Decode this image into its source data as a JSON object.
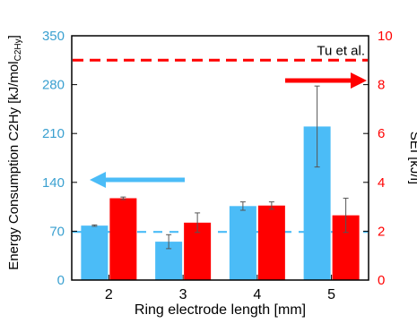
{
  "chart_data": {
    "type": "bar",
    "categories": [
      "2",
      "3",
      "4",
      "5"
    ],
    "xlabel": "Ring electrode length [mm]",
    "y_left": {
      "label_main": "Energy Consumption C2Hy [kJ/mol",
      "label_sub": "C2Hy",
      "label_close": "]",
      "ticks": [
        "0",
        "70",
        "140",
        "210",
        "280",
        "350"
      ],
      "ylim": [
        0,
        350
      ],
      "color": "#3aa0d0"
    },
    "y_right": {
      "label": "SEI [kJ/l]",
      "ticks": [
        "0",
        "2",
        "4",
        "6",
        "8",
        "10"
      ],
      "ylim": [
        0,
        10
      ],
      "color": "#ff0000"
    },
    "series": [
      {
        "axis": "left",
        "color": "#4bbcf7",
        "values": [
          78,
          55,
          106,
          220
        ],
        "errors": [
          1,
          10,
          6,
          58
        ]
      },
      {
        "axis": "right",
        "color": "#ff0000",
        "values": [
          3.35,
          2.35,
          3.05,
          2.65
        ],
        "errors": [
          0.05,
          0.4,
          0.15,
          0.7
        ]
      }
    ],
    "reference_lines": [
      {
        "axis": "right",
        "value": 9.0,
        "color": "#ff0000",
        "label": "Tu et al."
      },
      {
        "axis": "left",
        "value": 69,
        "color": "#4bbcf7"
      }
    ],
    "arrows": [
      {
        "axis": "left",
        "direction": "left",
        "color": "#4bbcf7"
      },
      {
        "axis": "right",
        "direction": "right",
        "color": "#ff0000"
      }
    ]
  }
}
